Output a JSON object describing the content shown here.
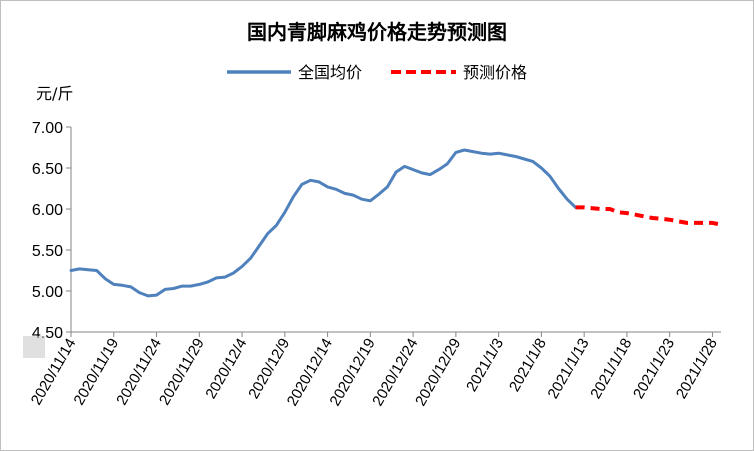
{
  "chart_data": {
    "type": "line",
    "title": "国内青脚麻鸡价格走势预测图",
    "ylabel": "元/斤",
    "ylim": [
      4.5,
      7.0
    ],
    "yticks": [
      "4.50",
      "5.00",
      "5.50",
      "6.00",
      "6.50",
      "7.00"
    ],
    "grid": false,
    "legend_position": "top",
    "x_tick_labels": [
      "2020/11/14",
      "2020/11/19",
      "2020/11/24",
      "2020/11/29",
      "2020/12/4",
      "2020/12/9",
      "2020/12/14",
      "2020/12/19",
      "2020/12/24",
      "2020/12/29",
      "2021/1/3",
      "2021/1/8",
      "2021/1/13",
      "2021/1/18",
      "2021/1/23",
      "2021/1/28"
    ],
    "x_start": "2020/11/14",
    "x_end": "2021/1/29",
    "series": [
      {
        "name": "全国均价",
        "color": "#4f81bd",
        "style": "solid",
        "x": [
          "2020/11/14",
          "2020/11/15",
          "2020/11/16",
          "2020/11/17",
          "2020/11/18",
          "2020/11/19",
          "2020/11/20",
          "2020/11/21",
          "2020/11/22",
          "2020/11/23",
          "2020/11/24",
          "2020/11/25",
          "2020/11/26",
          "2020/11/27",
          "2020/11/28",
          "2020/11/29",
          "2020/11/30",
          "2020/12/1",
          "2020/12/2",
          "2020/12/3",
          "2020/12/4",
          "2020/12/5",
          "2020/12/6",
          "2020/12/7",
          "2020/12/8",
          "2020/12/9",
          "2020/12/10",
          "2020/12/11",
          "2020/12/12",
          "2020/12/13",
          "2020/12/14",
          "2020/12/15",
          "2020/12/16",
          "2020/12/17",
          "2020/12/18",
          "2020/12/19",
          "2020/12/20",
          "2020/12/21",
          "2020/12/22",
          "2020/12/23",
          "2020/12/24",
          "2020/12/25",
          "2020/12/26",
          "2020/12/27",
          "2020/12/28",
          "2020/12/29",
          "2020/12/30",
          "2020/12/31",
          "2021/1/1",
          "2021/1/2",
          "2021/1/3",
          "2021/1/4",
          "2021/1/5",
          "2021/1/6",
          "2021/1/7",
          "2021/1/8",
          "2021/1/9",
          "2021/1/10",
          "2021/1/11",
          "2021/1/12"
        ],
        "values": [
          5.25,
          5.27,
          5.26,
          5.25,
          5.15,
          5.08,
          5.07,
          5.05,
          4.98,
          4.94,
          4.95,
          5.02,
          5.03,
          5.06,
          5.06,
          5.08,
          5.11,
          5.16,
          5.17,
          5.22,
          5.3,
          5.4,
          5.55,
          5.7,
          5.8,
          5.96,
          6.15,
          6.3,
          6.35,
          6.33,
          6.27,
          6.24,
          6.19,
          6.17,
          6.12,
          6.1,
          6.18,
          6.27,
          6.45,
          6.52,
          6.48,
          6.44,
          6.42,
          6.48,
          6.55,
          6.69,
          6.72,
          6.7,
          6.68,
          6.67,
          6.68,
          6.66,
          6.64,
          6.61,
          6.58,
          6.5,
          6.4,
          6.25,
          6.12,
          6.02
        ]
      },
      {
        "name": "预测价格",
        "color": "#ff0000",
        "style": "dashed",
        "x": [
          "2021/1/12",
          "2021/1/13",
          "2021/1/14",
          "2021/1/15",
          "2021/1/16",
          "2021/1/17",
          "2021/1/18",
          "2021/1/19",
          "2021/1/20",
          "2021/1/21",
          "2021/1/22",
          "2021/1/23",
          "2021/1/24",
          "2021/1/25",
          "2021/1/26",
          "2021/1/27",
          "2021/1/28",
          "2021/1/29"
        ],
        "values": [
          6.02,
          6.02,
          6.01,
          6.0,
          6.0,
          5.96,
          5.95,
          5.93,
          5.91,
          5.89,
          5.88,
          5.87,
          5.85,
          5.83,
          5.83,
          5.83,
          5.83,
          5.81
        ]
      }
    ]
  }
}
